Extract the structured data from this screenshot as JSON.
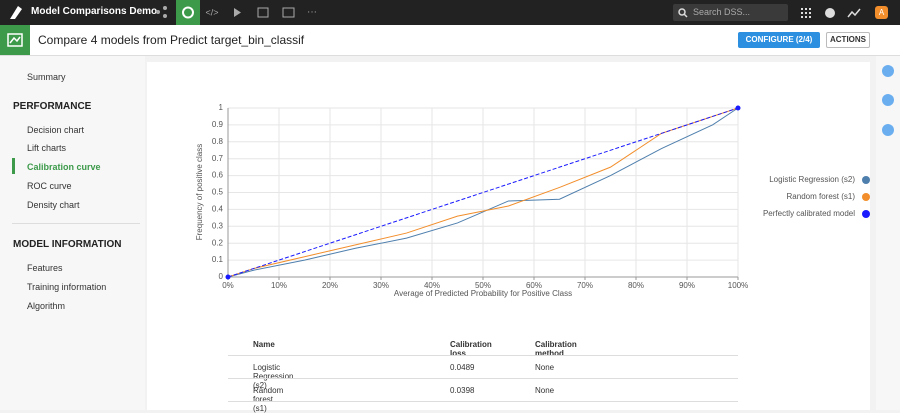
{
  "topbar": {
    "project": "Model Comparisons Demo",
    "search": "Search DSS...",
    "avatar": "A"
  },
  "header": {
    "title": "Compare 4 models from Predict target_bin_classif",
    "configure": "CONFIGURE (2/4)",
    "actions": "ACTIONS"
  },
  "nav": {
    "summary": "Summary",
    "sections": [
      {
        "title": "PERFORMANCE",
        "items": [
          "Decision chart",
          "Lift charts",
          "Calibration curve",
          "ROC curve",
          "Density chart"
        ]
      },
      {
        "title": "MODEL INFORMATION",
        "items": [
          "Features",
          "Training information",
          "Algorithm"
        ]
      }
    ]
  },
  "chart_data": {
    "type": "line",
    "x_label": "Average of Predicted Probability for Positive Class",
    "y_label": "Frequency of positive class",
    "xlim": [
      0,
      100
    ],
    "ylim": [
      0,
      1
    ],
    "xticks": [
      {
        "value": 0,
        "label": "0%"
      },
      {
        "value": 10,
        "label": "10%"
      },
      {
        "value": 20,
        "label": "20%"
      },
      {
        "value": 30,
        "label": "30%"
      },
      {
        "value": 40,
        "label": "40%"
      },
      {
        "value": 50,
        "label": "50%"
      },
      {
        "value": 60,
        "label": "60%"
      },
      {
        "value": 70,
        "label": "70%"
      },
      {
        "value": 80,
        "label": "80%"
      },
      {
        "value": 90,
        "label": "90%"
      },
      {
        "value": 100,
        "label": "100%"
      }
    ],
    "yticks": [
      0,
      0.1,
      0.2,
      0.3,
      0.4,
      0.5,
      0.6,
      0.7,
      0.8,
      0.9,
      1
    ],
    "grid": true,
    "legend": "right",
    "series": [
      {
        "name": "Logistic Regression (s2)",
        "color": "#4e7fad",
        "x": [
          0,
          5,
          15,
          25,
          35,
          45,
          55,
          65,
          75,
          85,
          95,
          100
        ],
        "values": [
          0,
          0.04,
          0.1,
          0.17,
          0.23,
          0.32,
          0.45,
          0.46,
          0.6,
          0.76,
          0.9,
          1
        ]
      },
      {
        "name": "Random forest (s1)",
        "color": "#f28e2b",
        "x": [
          0,
          5,
          15,
          25,
          35,
          45,
          55,
          65,
          75,
          85,
          100
        ],
        "values": [
          0,
          0.05,
          0.12,
          0.19,
          0.26,
          0.36,
          0.42,
          0.53,
          0.65,
          0.85,
          1
        ]
      },
      {
        "name": "Perfectly calibrated model",
        "color": "#1a1aff",
        "dashed": true,
        "markers": true,
        "x": [
          0,
          100
        ],
        "values": [
          0,
          1
        ]
      }
    ]
  },
  "table": {
    "columns": [
      "Name",
      "Calibration loss",
      "Calibration method"
    ],
    "rows": [
      [
        "Logistic Regression (s2)",
        0.0489,
        "None"
      ],
      [
        "Random forest (s1)",
        0.0398,
        "None"
      ]
    ]
  }
}
